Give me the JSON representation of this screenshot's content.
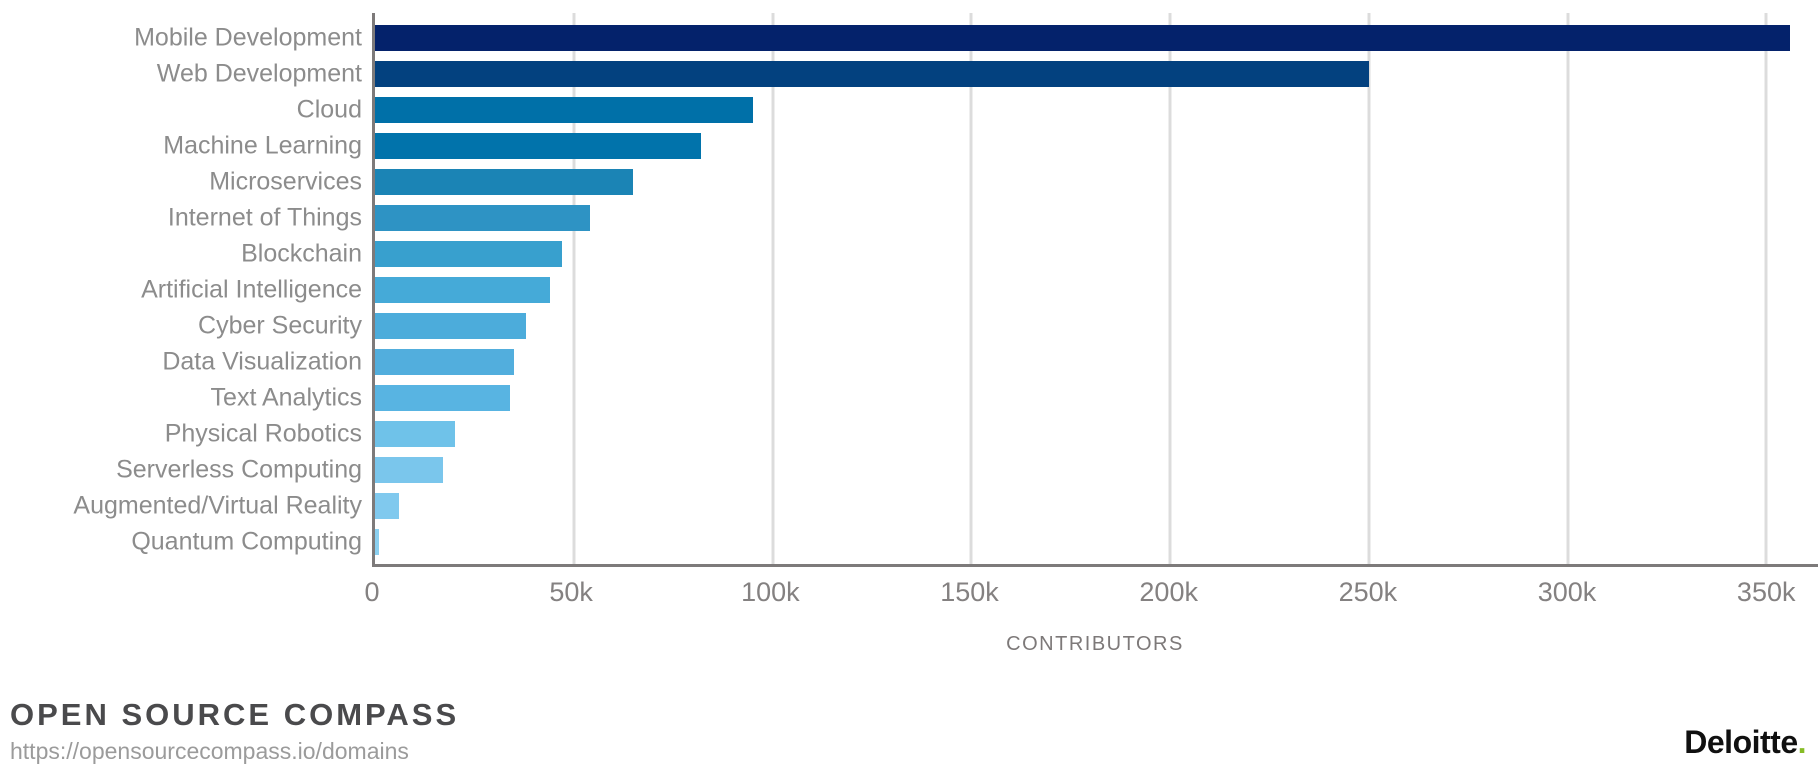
{
  "chart_data": {
    "type": "bar",
    "orientation": "horizontal",
    "title": "",
    "xlabel": "CONTRIBUTORS",
    "ylabel": "",
    "categories": [
      "Mobile Development",
      "Web Development",
      "Cloud",
      "Machine Learning",
      "Microservices",
      "Internet of Things",
      "Blockchain",
      "Artificial Intelligence",
      "Cyber Security",
      "Data Visualization",
      "Text Analytics",
      "Physical Robotics",
      "Serverless Computing",
      "Augmented/Virtual Reality",
      "Quantum Computing"
    ],
    "values": [
      356000,
      250000,
      95000,
      82000,
      65000,
      54000,
      47000,
      44000,
      38000,
      35000,
      34000,
      20000,
      17000,
      6000,
      1000
    ],
    "bar_colors": [
      "#04226b",
      "#03417f",
      "#0070a8",
      "#0173ab",
      "#1b84b5",
      "#2e93c4",
      "#38a0ce",
      "#45aad8",
      "#4cacdb",
      "#52aedd",
      "#58b4e2",
      "#6fc2e9",
      "#7ac6ec",
      "#80c9ee",
      "#8bd0f0"
    ],
    "x_ticks": [
      {
        "label": "0",
        "value": 0
      },
      {
        "label": "50k",
        "value": 50000
      },
      {
        "label": "100k",
        "value": 100000
      },
      {
        "label": "150k",
        "value": 150000
      },
      {
        "label": "200k",
        "value": 200000
      },
      {
        "label": "250k",
        "value": 250000
      },
      {
        "label": "300k",
        "value": 300000
      },
      {
        "label": "350k",
        "value": 350000
      }
    ],
    "xlim": [
      0,
      363000
    ],
    "grid": "vertical",
    "legend": "none"
  },
  "footer": {
    "title": "OPEN SOURCE COMPASS",
    "url": "https://opensourcecompass.io/domains",
    "brand": "Deloitte",
    "brand_dot": ".",
    "brand_dot_color": "#86bc25"
  }
}
